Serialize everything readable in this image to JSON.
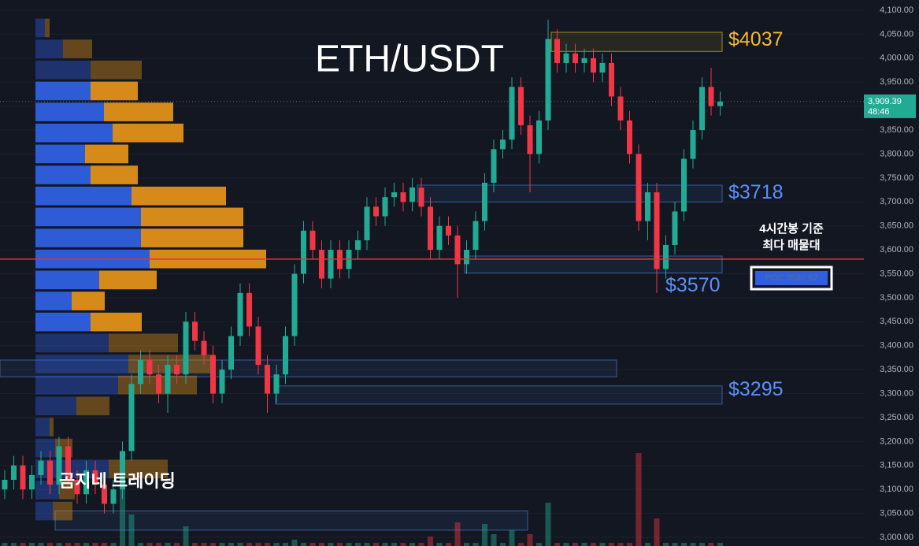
{
  "chart_data": {
    "type": "candlestick",
    "title": "ETH/USDT",
    "watermark": "곰지네 트레이딩",
    "open": [
      3100,
      3120,
      3150,
      3100,
      3130,
      3160,
      3110,
      3190,
      3120,
      3090,
      3140,
      3110,
      3070,
      3100,
      3180,
      3320,
      3370,
      3340,
      3300,
      3360,
      3340,
      3450,
      3410,
      3380,
      3300,
      3350,
      3420,
      3510,
      3440,
      3360,
      3300,
      3340,
      3420,
      3550,
      3640,
      3600,
      3540,
      3600,
      3560,
      3600,
      3620,
      3690,
      3670,
      3710,
      3720,
      3700,
      3730,
      3690,
      3600,
      3650,
      3630,
      3570,
      3600,
      3660,
      3740,
      3810,
      3830,
      3940,
      3860,
      3800,
      3870,
      4040,
      3990,
      4010,
      3990,
      4000,
      3970,
      3990,
      3920,
      3870,
      3800,
      3660,
      3720,
      3560,
      3610,
      3680,
      3790,
      3850,
      3940,
      3900
    ],
    "high": [
      3140,
      3170,
      3170,
      3150,
      3180,
      3180,
      3210,
      3210,
      3140,
      3160,
      3160,
      3130,
      3120,
      3200,
      3340,
      3390,
      3390,
      3360,
      3380,
      3380,
      3470,
      3470,
      3430,
      3400,
      3370,
      3440,
      3530,
      3530,
      3460,
      3380,
      3360,
      3440,
      3570,
      3660,
      3660,
      3620,
      3620,
      3620,
      3620,
      3640,
      3710,
      3710,
      3730,
      3740,
      3740,
      3750,
      3750,
      3710,
      3670,
      3670,
      3650,
      3620,
      3680,
      3760,
      3830,
      3850,
      3960,
      3960,
      3880,
      3890,
      4080,
      4060,
      4030,
      4030,
      4020,
      4020,
      4010,
      4010,
      3940,
      3890,
      3820,
      3740,
      3740,
      3630,
      3700,
      3810,
      3870,
      3960,
      3980,
      3930
    ],
    "low": [
      3080,
      3100,
      3080,
      3080,
      3110,
      3090,
      3090,
      3100,
      3070,
      3070,
      3090,
      3050,
      3050,
      3080,
      3160,
      3300,
      3320,
      3280,
      3260,
      3320,
      3320,
      3390,
      3360,
      3280,
      3280,
      3330,
      3400,
      3420,
      3340,
      3260,
      3280,
      3320,
      3400,
      3530,
      3580,
      3520,
      3520,
      3540,
      3540,
      3580,
      3600,
      3650,
      3650,
      3690,
      3680,
      3680,
      3670,
      3580,
      3580,
      3610,
      3500,
      3550,
      3580,
      3640,
      3720,
      3790,
      3810,
      3840,
      3720,
      3780,
      3850,
      3970,
      3970,
      3970,
      3970,
      3950,
      3950,
      3900,
      3850,
      3780,
      3640,
      3620,
      3510,
      3540,
      3590,
      3660,
      3770,
      3830,
      3880,
      3880
    ],
    "close": [
      3120,
      3150,
      3100,
      3130,
      3160,
      3110,
      3190,
      3120,
      3090,
      3140,
      3110,
      3070,
      3100,
      3180,
      3320,
      3370,
      3340,
      3300,
      3360,
      3340,
      3450,
      3410,
      3380,
      3300,
      3350,
      3420,
      3510,
      3440,
      3360,
      3300,
      3340,
      3420,
      3550,
      3640,
      3600,
      3540,
      3600,
      3560,
      3600,
      3620,
      3690,
      3670,
      3710,
      3720,
      3700,
      3730,
      3690,
      3600,
      3650,
      3630,
      3570,
      3600,
      3660,
      3740,
      3810,
      3830,
      3940,
      3860,
      3800,
      3870,
      4040,
      3990,
      4010,
      3990,
      4000,
      3970,
      3990,
      3920,
      3870,
      3800,
      3660,
      3720,
      3560,
      3610,
      3680,
      3790,
      3850,
      3940,
      3900,
      3909.39
    ],
    "volume": [
      4,
      4,
      4,
      4,
      4,
      4,
      4,
      4,
      4,
      4,
      4,
      4,
      4,
      110,
      40,
      4,
      4,
      4,
      4,
      4,
      25,
      4,
      4,
      4,
      4,
      4,
      4,
      4,
      4,
      4,
      4,
      4,
      8,
      4,
      4,
      4,
      4,
      4,
      4,
      4,
      4,
      4,
      4,
      4,
      4,
      4,
      4,
      12,
      4,
      4,
      30,
      4,
      4,
      28,
      15,
      4,
      20,
      4,
      15,
      4,
      55,
      4,
      4,
      4,
      4,
      4,
      4,
      4,
      4,
      4,
      118,
      4,
      35,
      4,
      4,
      4,
      4,
      4,
      4,
      4
    ],
    "up_color": "#22ab94",
    "down_color": "#f23645",
    "ylim": [
      3000,
      4100
    ],
    "yticks": [
      {
        "value": 3000,
        "label": "3,000.00"
      },
      {
        "value": 3050,
        "label": "3,050.00"
      },
      {
        "value": 3100,
        "label": "3,100.00"
      },
      {
        "value": 3150,
        "label": "3,150.00"
      },
      {
        "value": 3200,
        "label": "3,200.00"
      },
      {
        "value": 3250,
        "label": "3,250.00"
      },
      {
        "value": 3300,
        "label": "3,300.00"
      },
      {
        "value": 3350,
        "label": "3,350.00"
      },
      {
        "value": 3400,
        "label": "3,400.00"
      },
      {
        "value": 3450,
        "label": "3,450.00"
      },
      {
        "value": 3500,
        "label": "3,500.00"
      },
      {
        "value": 3550,
        "label": "3,550.00"
      },
      {
        "value": 3600,
        "label": "3,600.00"
      },
      {
        "value": 3650,
        "label": "3,650.00"
      },
      {
        "value": 3700,
        "label": "3,700.00"
      },
      {
        "value": 3750,
        "label": "3,750.00"
      },
      {
        "value": 3800,
        "label": "3,800.00"
      },
      {
        "value": 3850,
        "label": "3,850.00"
      },
      {
        "value": 3900,
        "label": "3,900.00"
      },
      {
        "value": 3950,
        "label": "3,950.00"
      },
      {
        "value": 4000,
        "label": "4,000.00"
      },
      {
        "value": 4050,
        "label": "4,050.00"
      },
      {
        "value": 4100,
        "label": "4,100.00"
      }
    ],
    "grid": true,
    "last_price": {
      "value": 3909.39,
      "label": "3,909.39"
    },
    "countdown": "48:46",
    "poc": {
      "value": 3580.62,
      "label": "POC  3580.62"
    },
    "poc_note": [
      "4시간봉 기준",
      "최다 매물대"
    ],
    "profile": {
      "range": [
        3033,
        4085
      ],
      "value_area": [
        3385,
        3995
      ],
      "blue": [
        12,
        35,
        70,
        70,
        87,
        98,
        63,
        70,
        122,
        134,
        134,
        145,
        81,
        46,
        70,
        93,
        118,
        105,
        52,
        18,
        25,
        93,
        30,
        22
      ],
      "orange": [
        6,
        37,
        65,
        60,
        88,
        90,
        55,
        60,
        120,
        130,
        130,
        148,
        73,
        42,
        65,
        88,
        110,
        100,
        42,
        5,
        22,
        75,
        20,
        25
      ],
      "blue_color": "#2f5fe0",
      "orange_color": "#e0901a"
    },
    "zones": [
      {
        "top": 4054,
        "bottom": 4014,
        "color": "#c9a227"
      },
      {
        "top": 3735,
        "bottom": 3700,
        "color": "#3f6fb8"
      },
      {
        "top": 3587,
        "bottom": 3552,
        "color": "#3f6fb8"
      },
      {
        "top": 3370,
        "bottom": 3335,
        "color": "#3f6fb8"
      },
      {
        "top": 3316,
        "bottom": 3278,
        "color": "#3f6fb8"
      },
      {
        "top": 3055,
        "bottom": 3015,
        "color": "#3f6fb8"
      }
    ],
    "levels": [
      4037,
      3718,
      3570,
      3295
    ],
    "level_labels": [
      "$4037",
      "$3718",
      "$3570",
      "$3295"
    ],
    "level_colors": [
      "#f5b731",
      "#5b8ff9",
      "#5b8ff9",
      "#5b8ff9"
    ]
  }
}
